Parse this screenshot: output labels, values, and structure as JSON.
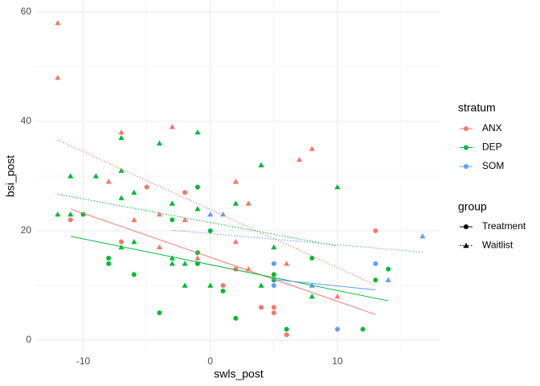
{
  "chart_data": {
    "type": "scatter",
    "x_label": "swls_post",
    "y_label": "bsi_post",
    "xlim": [
      -13.7,
      18.1
    ],
    "ylim": [
      -2.2,
      62.2
    ],
    "xticks": [
      -10,
      0,
      10
    ],
    "yticks": [
      0,
      20,
      40,
      60
    ],
    "minor_xticks": [
      -5,
      5,
      15
    ],
    "minor_yticks": [
      10,
      30,
      50
    ],
    "grid": true,
    "legends": [
      {
        "title": "stratum",
        "entries": [
          {
            "label": "ANX",
            "color": "#F8766D"
          },
          {
            "label": "DEP",
            "color": "#00BA38"
          },
          {
            "label": "SOM",
            "color": "#619CFF"
          }
        ]
      },
      {
        "title": "group",
        "entries": [
          {
            "label": "Treatment",
            "shape": "circle",
            "line": "solid"
          },
          {
            "label": "Waitlist",
            "shape": "triangle",
            "line": "dotted"
          }
        ]
      }
    ],
    "series": [
      {
        "stratum": "ANX",
        "group": "Treatment",
        "x": [
          -11,
          -5,
          -2,
          -7,
          1,
          4,
          5,
          5,
          6,
          2,
          13
        ],
        "y": [
          22,
          28,
          27,
          18,
          10,
          6,
          6,
          5,
          1,
          13,
          20
        ],
        "fit_x": [
          -11,
          13
        ],
        "fit_y": [
          24,
          4.7
        ]
      },
      {
        "stratum": "ANX",
        "group": "Waitlist",
        "x": [
          -12,
          -12,
          -7,
          -3,
          -8,
          -4,
          -1,
          2,
          3,
          8,
          7,
          6,
          2,
          -4,
          10,
          -6,
          -2,
          -1,
          3
        ],
        "y": [
          58,
          48,
          38,
          39,
          29,
          23,
          24,
          29,
          25,
          35,
          33,
          14,
          18,
          17,
          8,
          22,
          22,
          15,
          13
        ],
        "fit_x": [
          -12,
          13
        ],
        "fit_y": [
          36.6,
          10.1
        ]
      },
      {
        "stratum": "DEP",
        "group": "Treatment",
        "x": [
          -10,
          -8,
          -8,
          -6,
          -4,
          -3,
          -1,
          -1,
          -1,
          0,
          1,
          2,
          5,
          5,
          6,
          8,
          12,
          13,
          14
        ],
        "y": [
          23,
          15,
          14,
          12,
          5,
          22,
          28,
          16,
          14,
          20,
          9,
          4,
          12,
          11,
          2,
          15,
          2,
          11,
          13
        ],
        "fit_x": [
          -11,
          14
        ],
        "fit_y": [
          19,
          7.2
        ]
      },
      {
        "stratum": "DEP",
        "group": "Waitlist",
        "x": [
          -12,
          -11,
          -11,
          -9,
          -7,
          -7,
          -7,
          -6,
          -6,
          -4,
          -3,
          -3,
          -3,
          -2,
          -1,
          -1,
          0,
          2,
          4,
          4,
          5,
          8,
          10,
          -2,
          -7
        ],
        "y": [
          23,
          30,
          23,
          30,
          37,
          31,
          26,
          27,
          18,
          36,
          25,
          15,
          14,
          14,
          38,
          24,
          10,
          25,
          32,
          10,
          17,
          8,
          28,
          10,
          17
        ],
        "fit_x": [
          -12,
          10
        ],
        "fit_y": [
          26.7,
          17.2
        ]
      },
      {
        "stratum": "SOM",
        "group": "Treatment",
        "x": [
          5,
          5,
          10,
          13
        ],
        "y": [
          14,
          10,
          2,
          14
        ],
        "fit_x": [
          5,
          13
        ],
        "fit_y": [
          11.1,
          9.2
        ]
      },
      {
        "stratum": "SOM",
        "group": "Waitlist",
        "x": [
          0,
          1,
          16.7,
          14,
          8
        ],
        "y": [
          23,
          23,
          19,
          11,
          10
        ],
        "fit_x": [
          -3,
          16.7
        ],
        "fit_y": [
          20.1,
          16.1
        ]
      }
    ]
  }
}
